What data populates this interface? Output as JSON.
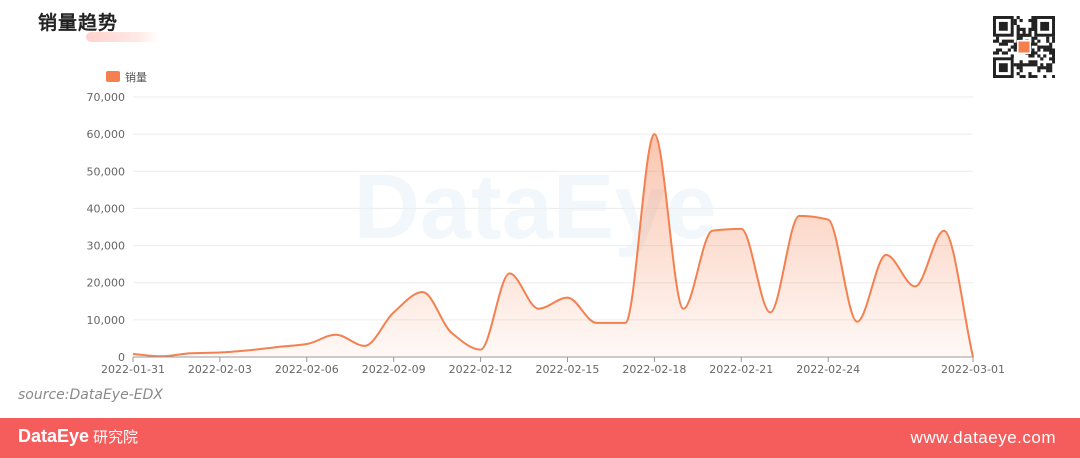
{
  "title": "销量趋势",
  "watermark": "DataEye",
  "source": "source:DataEye-EDX",
  "footer": {
    "brand": "DataEye",
    "brand_sub": "研究院",
    "url": "www.dataeye.com"
  },
  "colors": {
    "line": "#f4804f",
    "fill": "#fbd7cb",
    "footer_bg": "#f55c5c",
    "legend": "#f4804f"
  },
  "icons": {
    "qr": "qr-code-icon"
  },
  "chart_data": {
    "type": "area",
    "legend": [
      "销量"
    ],
    "legend_position": "top-left",
    "grid": true,
    "ylim": [
      0,
      70000
    ],
    "yticks": [
      "0",
      "10,000",
      "20,000",
      "30,000",
      "40,000",
      "50,000",
      "60,000",
      "70,000"
    ],
    "xticks": [
      "2022-01-31",
      "2022-02-03",
      "2022-02-06",
      "2022-02-09",
      "2022-02-12",
      "2022-02-15",
      "2022-02-18",
      "2022-02-21",
      "2022-02-24",
      "2022-03-01"
    ],
    "series": [
      {
        "name": "销量",
        "points": [
          {
            "x": "2022-01-31",
            "y": 800
          },
          {
            "x": "2022-02-01",
            "y": 200
          },
          {
            "x": "2022-02-02",
            "y": 1000
          },
          {
            "x": "2022-02-03",
            "y": 1200
          },
          {
            "x": "2022-02-04",
            "y": 1800
          },
          {
            "x": "2022-02-05",
            "y": 2700
          },
          {
            "x": "2022-02-06",
            "y": 3500
          },
          {
            "x": "2022-02-07",
            "y": 6000
          },
          {
            "x": "2022-02-08",
            "y": 3000
          },
          {
            "x": "2022-02-09",
            "y": 12000
          },
          {
            "x": "2022-02-10",
            "y": 17500
          },
          {
            "x": "2022-02-11",
            "y": 6500
          },
          {
            "x": "2022-02-12",
            "y": 2000
          },
          {
            "x": "2022-02-13",
            "y": 22500
          },
          {
            "x": "2022-02-14",
            "y": 13000
          },
          {
            "x": "2022-02-15",
            "y": 16000
          },
          {
            "x": "2022-02-16",
            "y": 9200
          },
          {
            "x": "2022-02-17",
            "y": 9200
          },
          {
            "x": "2022-02-18",
            "y": 60000
          },
          {
            "x": "2022-02-19",
            "y": 13000
          },
          {
            "x": "2022-02-20",
            "y": 34000
          },
          {
            "x": "2022-02-21",
            "y": 34500
          },
          {
            "x": "2022-02-22",
            "y": 12000
          },
          {
            "x": "2022-02-23",
            "y": 38000
          },
          {
            "x": "2022-02-24",
            "y": 37000
          },
          {
            "x": "2022-02-25",
            "y": 9500
          },
          {
            "x": "2022-02-26",
            "y": 27500
          },
          {
            "x": "2022-02-27",
            "y": 19000
          },
          {
            "x": "2022-02-28",
            "y": 34000
          },
          {
            "x": "2022-03-01",
            "y": 0
          }
        ]
      }
    ]
  }
}
